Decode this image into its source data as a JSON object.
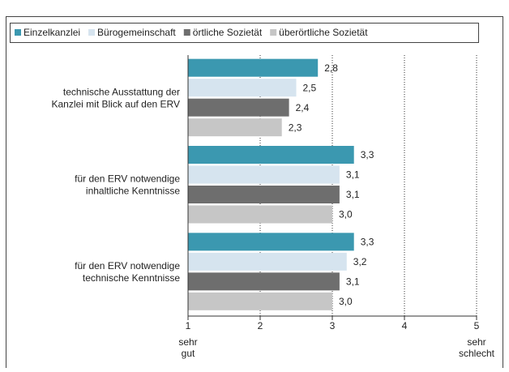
{
  "chart_data": {
    "type": "hbar",
    "categories": [
      [
        "technische Ausstattung der",
        "Kanzlei mit Blick auf den ERV"
      ],
      [
        "für den ERV notwendige",
        "inhaltliche Kenntnisse"
      ],
      [
        "für den ERV notwendige",
        "technische Kenntnisse"
      ]
    ],
    "series": [
      {
        "name": "Einzelkanzlei",
        "color": "#3b98b0",
        "values": [
          2.8,
          3.3,
          3.3
        ],
        "value_labels": [
          "2,8",
          "3,3",
          "3,3"
        ]
      },
      {
        "name": "Bürogemeinschaft",
        "color": "#d6e4ef",
        "values": [
          2.5,
          3.1,
          3.2
        ],
        "value_labels": [
          "2,5",
          "3,1",
          "3,2"
        ]
      },
      {
        "name": "örtliche Sozietät",
        "color": "#6e6e6e",
        "values": [
          2.4,
          3.1,
          3.1
        ],
        "value_labels": [
          "2,4",
          "3,1",
          "3,1"
        ]
      },
      {
        "name": "überörtliche Sozietät",
        "color": "#c6c6c6",
        "values": [
          2.3,
          3.0,
          3.0
        ],
        "value_labels": [
          "2,3",
          "3,0",
          "3,0"
        ]
      }
    ],
    "xlim": [
      1,
      5
    ],
    "xticks": [
      1,
      2,
      3,
      4,
      5
    ],
    "grid": true,
    "x_end_labels": {
      "left": [
        "sehr",
        "gut"
      ],
      "right": [
        "sehr",
        "schlecht"
      ]
    },
    "legend": "top"
  }
}
